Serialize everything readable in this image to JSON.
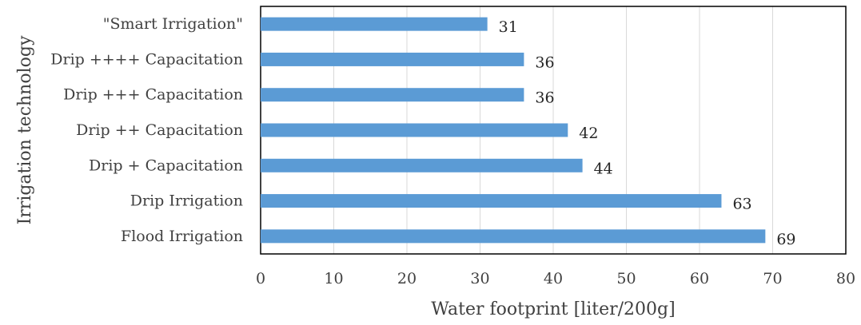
{
  "chart_data": {
    "type": "bar",
    "orientation": "horizontal",
    "xlabel": "Water footprint [liter/200g]",
    "ylabel": "Irrigation technology",
    "categories": [
      "\"Smart Irrigation\"",
      "Drip ++++ Capacitation",
      "Drip +++ Capacitation",
      "Drip ++ Capacitation",
      "Drip + Capacitation",
      "Drip Irrigation",
      "Flood Irrigation"
    ],
    "values": [
      31,
      36,
      36,
      42,
      44,
      63,
      69
    ],
    "data_labels": [
      "31",
      "36",
      "36",
      "42",
      "44",
      "63",
      "69"
    ],
    "xlim": [
      0,
      80
    ],
    "xticks": [
      0,
      10,
      20,
      30,
      40,
      50,
      60,
      70,
      80
    ],
    "xtick_labels": [
      "0",
      "10",
      "20",
      "30",
      "40",
      "50",
      "60",
      "70",
      "80"
    ],
    "bar_color": "#5b9bd5",
    "grid": "vertical",
    "legend": "none"
  }
}
